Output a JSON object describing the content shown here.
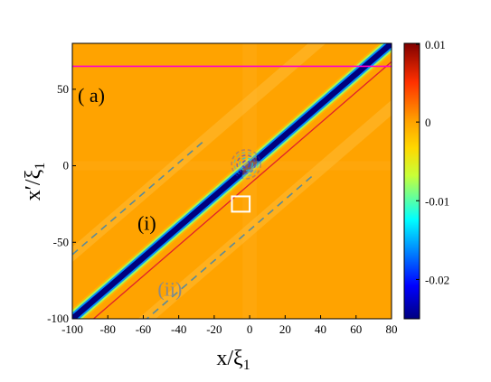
{
  "chart_data": {
    "type": "heatmap",
    "panel_label": "( a)",
    "xlabel": "x/ξ",
    "xlabel_sub": "1",
    "ylabel": "x′/ξ",
    "ylabel_sub": "1",
    "xlim": [
      -100,
      80
    ],
    "ylim": [
      -100,
      80
    ],
    "x_ticks": [
      -100,
      -80,
      -60,
      -40,
      -20,
      0,
      20,
      40,
      60,
      80
    ],
    "y_ticks": [
      -100,
      -50,
      0,
      50
    ],
    "x_tick_labels": [
      "-100",
      "-80",
      "-60",
      "-40",
      "-20",
      "0",
      "20",
      "40",
      "60",
      "80"
    ],
    "y_tick_labels": [
      "-100",
      "-50",
      "0",
      "50"
    ],
    "colorbar": {
      "range": [
        -0.025,
        0.01
      ],
      "ticks": [
        0.01,
        0,
        -0.01,
        -0.02
      ],
      "tick_labels": [
        "0.01",
        "0",
        "-0.01",
        "-0.02"
      ],
      "colormap": "jet"
    },
    "background_value": 0.0,
    "diagonal_band": {
      "line": "x' = x",
      "width": 8,
      "value": -0.025
    },
    "magenta_line": {
      "y": 65,
      "color": "#ff00cc"
    },
    "red_line": {
      "slope": 1,
      "offset": -12,
      "color": "#e0202a"
    },
    "dashed_lines": [
      {
        "slope": 1,
        "offset": 42,
        "color": "#5a8a9a",
        "x_range": [
          -100,
          -25
        ]
      },
      {
        "slope": 1,
        "offset": -42,
        "color": "#5a8a9a",
        "x_range": [
          -60,
          35
        ]
      }
    ],
    "box": {
      "x": [
        -10,
        0
      ],
      "y": [
        -30,
        -20
      ],
      "color": "#ffffff"
    },
    "annotations": [
      {
        "text": "(i)",
        "x": -58,
        "y": -42,
        "color": "#000000"
      },
      {
        "text": "(ii)",
        "x": -45,
        "y": -85,
        "color": "#8a8a8a"
      }
    ]
  }
}
